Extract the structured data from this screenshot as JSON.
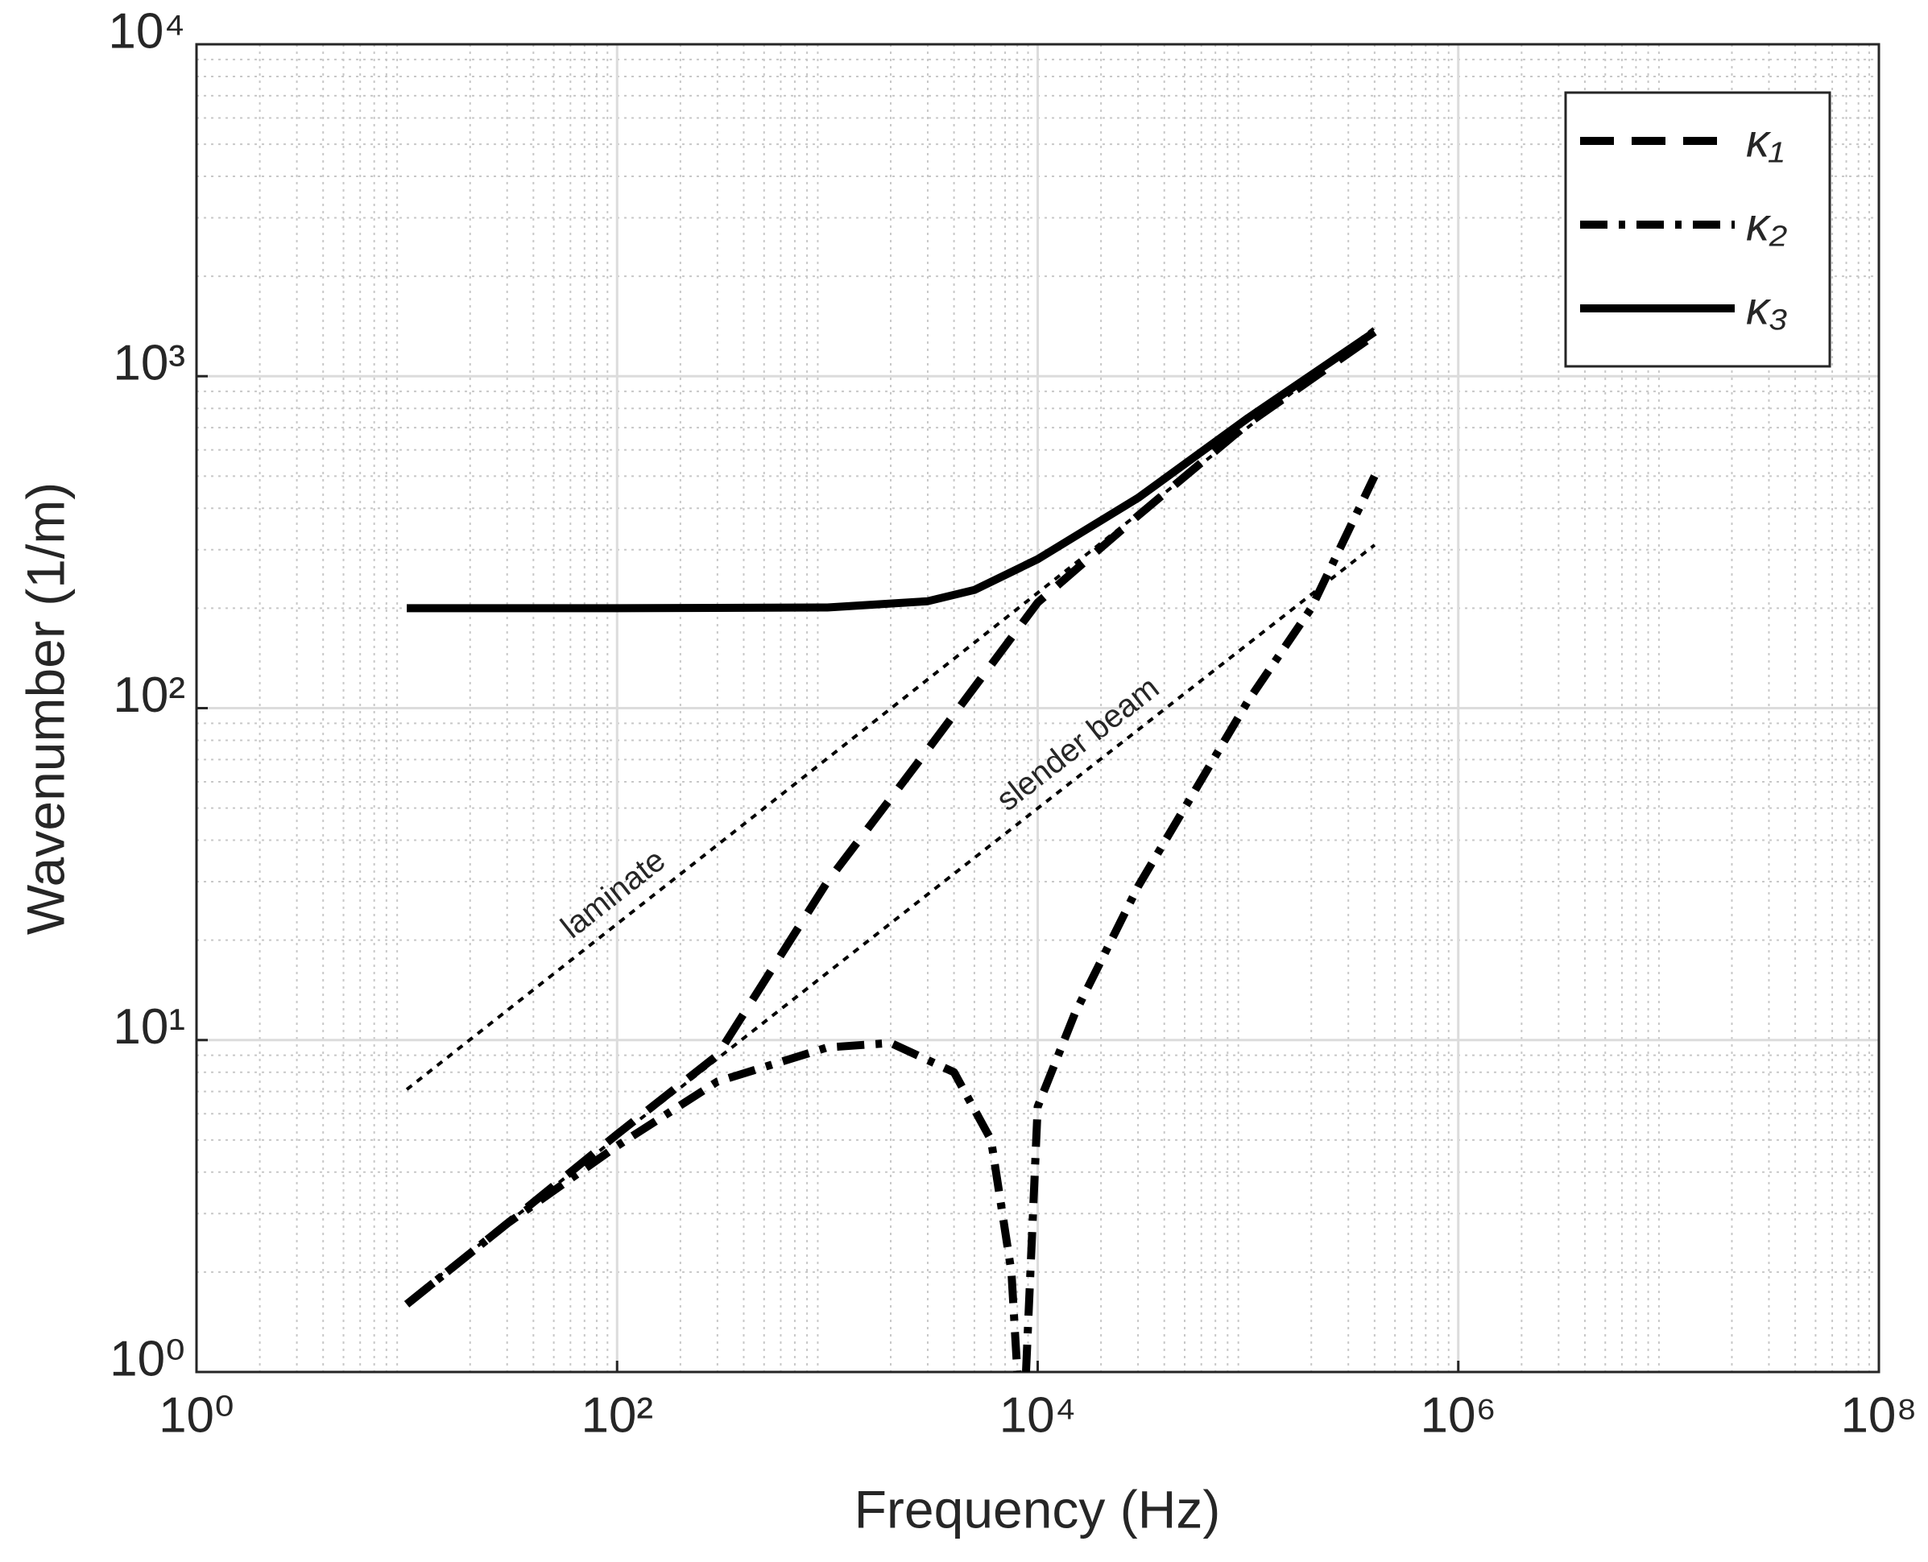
{
  "chart_data": {
    "type": "line",
    "xlabel": "Frequency (Hz)",
    "ylabel": "Wavenumber (1/m)",
    "xscale": "log",
    "yscale": "log",
    "xlim": [
      1,
      100000000
    ],
    "ylim": [
      1,
      10000
    ],
    "xticks": [
      {
        "value": 1,
        "label": "10⁰"
      },
      {
        "value": 100,
        "label": "10²"
      },
      {
        "value": 10000,
        "label": "10⁴"
      },
      {
        "value": 1000000,
        "label": "10⁶"
      },
      {
        "value": 100000000,
        "label": "10⁸"
      }
    ],
    "yticks": [
      {
        "value": 1,
        "label": "10⁰"
      },
      {
        "value": 10,
        "label": "10¹"
      },
      {
        "value": 100,
        "label": "10²"
      },
      {
        "value": 1000,
        "label": "10³"
      },
      {
        "value": 10000,
        "label": "10⁴"
      }
    ],
    "grid": true,
    "minor_grid": true,
    "legend": "upper right",
    "series": [
      {
        "name": "κ₁",
        "color": "#000000",
        "style": "dashed",
        "x": [
          10,
          30,
          100,
          300,
          1000,
          3000,
          10000,
          30000,
          100000,
          400000
        ],
        "values": [
          1.6,
          2.8,
          5.2,
          9,
          30,
          75,
          208,
          380,
          720,
          1330
        ]
      },
      {
        "name": "κ₂",
        "color": "#000000",
        "style": "dashdot",
        "x": [
          10,
          30,
          100,
          300,
          1000,
          2000,
          4000,
          6000,
          7500,
          8000,
          8400,
          8800,
          10000,
          15000,
          30000,
          100000,
          200000,
          400000
        ],
        "values": [
          1.6,
          2.8,
          4.8,
          7.5,
          9.5,
          9.8,
          8,
          5,
          2,
          1,
          null,
          1,
          6.3,
          12,
          29,
          105,
          200,
          500
        ]
      },
      {
        "name": "κ₃",
        "color": "#000000",
        "style": "solid",
        "x": [
          10,
          100,
          1000,
          3000,
          5000,
          10000,
          30000,
          100000,
          400000
        ],
        "values": [
          200,
          200,
          201,
          210,
          227,
          281,
          430,
          748,
          1360
        ]
      }
    ],
    "reference_lines": [
      {
        "name": "laminate",
        "color": "#000000",
        "style": "dotted",
        "x": [
          10,
          400000
        ],
        "values": [
          7.1,
          1400
        ]
      },
      {
        "name": "slender beam",
        "color": "#000000",
        "style": "dotted",
        "x": [
          10,
          400000
        ],
        "values": [
          1.63,
          310
        ]
      }
    ]
  }
}
